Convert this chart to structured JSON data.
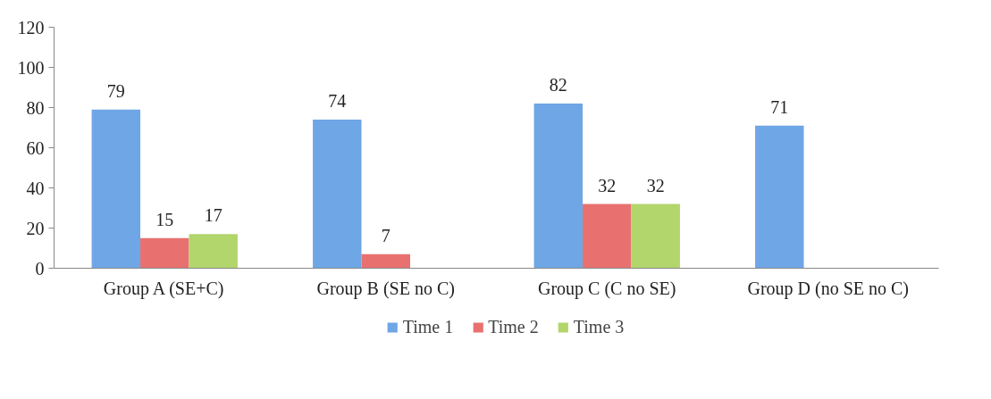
{
  "chart_data": {
    "type": "bar",
    "categories": [
      "Group A (SE+C)",
      "Group B (SE no C)",
      "Group C (C no SE)",
      "Group D (no SE no C)"
    ],
    "series": [
      {
        "name": "Time 1",
        "color": "#6fa6e6",
        "values": [
          79,
          74,
          82,
          71
        ]
      },
      {
        "name": "Time 2",
        "color": "#e8716f",
        "values": [
          15,
          7,
          32,
          null
        ]
      },
      {
        "name": "Time 3",
        "color": "#b2d56c",
        "values": [
          17,
          null,
          32,
          null
        ]
      }
    ],
    "ylim": [
      0,
      120
    ],
    "yticks": [
      0,
      20,
      40,
      60,
      80,
      100,
      120
    ],
    "grid": false,
    "legend": "bottom",
    "data_labels": true
  }
}
